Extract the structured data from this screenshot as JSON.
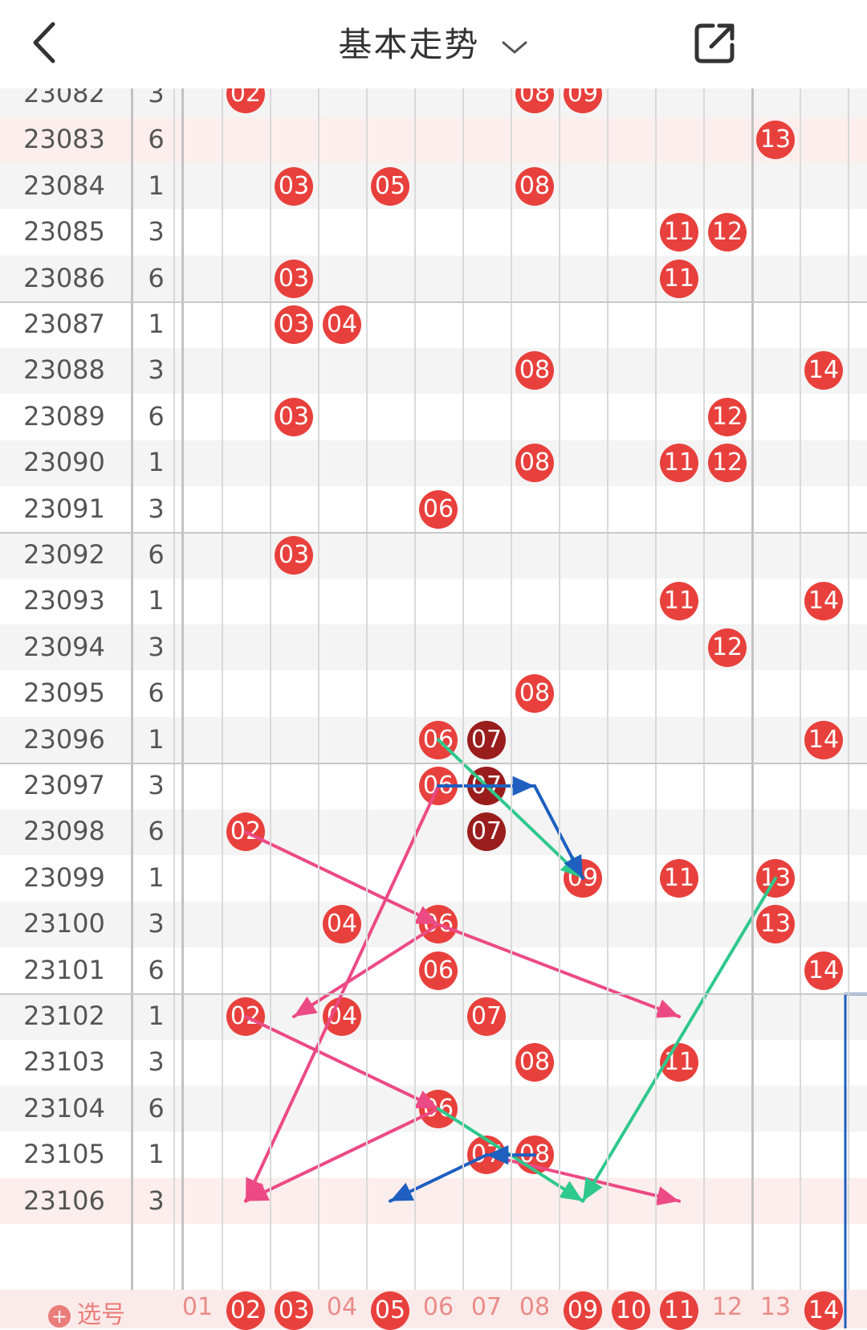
{
  "header": {
    "title": "基本走势",
    "back_icon": "chevron-left-icon",
    "dropdown_icon": "chevron-down-icon",
    "share_icon": "share-external-icon"
  },
  "colors": {
    "ball": "#e8403c",
    "ball_dark": "#9a1d1d",
    "arrow_pink": "#ec4a84",
    "arrow_green": "#2fc88c",
    "arrow_blue": "#1e5fc0",
    "frame_blue": "#1e5fc0"
  },
  "rows": [
    {
      "period": "23082",
      "sum": "3",
      "balls": [
        "02",
        "08",
        "09"
      ]
    },
    {
      "period": "23083",
      "sum": "6",
      "balls": [
        "13"
      ],
      "highlight": true
    },
    {
      "period": "23084",
      "sum": "1",
      "balls": [
        "03",
        "05",
        "08"
      ]
    },
    {
      "period": "23085",
      "sum": "3",
      "balls": [
        "11",
        "12"
      ]
    },
    {
      "period": "23086",
      "sum": "6",
      "balls": [
        "03",
        "11"
      ]
    },
    {
      "period": "23087",
      "sum": "1",
      "balls": [
        "03",
        "04"
      ]
    },
    {
      "period": "23088",
      "sum": "3",
      "balls": [
        "08",
        "14"
      ]
    },
    {
      "period": "23089",
      "sum": "6",
      "balls": [
        "03",
        "12"
      ]
    },
    {
      "period": "23090",
      "sum": "1",
      "balls": [
        "08",
        "11",
        "12"
      ]
    },
    {
      "period": "23091",
      "sum": "3",
      "balls": [
        "06"
      ]
    },
    {
      "period": "23092",
      "sum": "6",
      "balls": [
        "03"
      ]
    },
    {
      "period": "23093",
      "sum": "1",
      "balls": [
        "11",
        "14"
      ]
    },
    {
      "period": "23094",
      "sum": "3",
      "balls": [
        "12"
      ]
    },
    {
      "period": "23095",
      "sum": "6",
      "balls": [
        "08"
      ]
    },
    {
      "period": "23096",
      "sum": "1",
      "balls": [
        "06",
        "07",
        "14"
      ],
      "dark": [
        "07"
      ]
    },
    {
      "period": "23097",
      "sum": "3",
      "balls": [
        "06",
        "07"
      ],
      "dark": [
        "07"
      ]
    },
    {
      "period": "23098",
      "sum": "6",
      "balls": [
        "02",
        "07"
      ],
      "dark": [
        "07"
      ]
    },
    {
      "period": "23099",
      "sum": "1",
      "balls": [
        "09",
        "11",
        "13"
      ]
    },
    {
      "period": "23100",
      "sum": "3",
      "balls": [
        "04",
        "06",
        "13"
      ]
    },
    {
      "period": "23101",
      "sum": "6",
      "balls": [
        "06",
        "14"
      ]
    },
    {
      "period": "23102",
      "sum": "1",
      "balls": [
        "02",
        "04",
        "07"
      ]
    },
    {
      "period": "23103",
      "sum": "3",
      "balls": [
        "08",
        "11"
      ]
    },
    {
      "period": "23104",
      "sum": "6",
      "balls": [
        "06"
      ]
    },
    {
      "period": "23105",
      "sum": "1",
      "balls": [
        "07",
        "08"
      ]
    },
    {
      "period": "23106",
      "sum": "3",
      "balls": [],
      "highlight": true
    }
  ],
  "footer": {
    "pick_label": "选号",
    "pick_icon": "plus-circle-icon",
    "numbers": [
      "01",
      "02",
      "03",
      "04",
      "05",
      "06",
      "07",
      "08",
      "09",
      "10",
      "11",
      "12",
      "13",
      "14"
    ],
    "selected": [
      "02",
      "03",
      "05",
      "09",
      "10",
      "11",
      "14"
    ]
  },
  "arrows": [
    {
      "color": "pink",
      "from": "23098:02",
      "to": "23100:06"
    },
    {
      "color": "pink",
      "from": "23100:06",
      "to": "23102:11"
    },
    {
      "color": "pink",
      "from": "23100:06",
      "to": "23102:03"
    },
    {
      "color": "pink",
      "from": "23097:06",
      "to": "23106:02"
    },
    {
      "color": "pink",
      "from": "23102:02",
      "to": "23104:06"
    },
    {
      "color": "pink",
      "from": "23104:06",
      "to": "23106:02"
    },
    {
      "color": "pink",
      "from": "23105:07",
      "to": "23106:11"
    },
    {
      "color": "green",
      "from": "23096:06",
      "to": "23099:09"
    },
    {
      "color": "green",
      "from": "23099:13",
      "to": "23106:09"
    },
    {
      "color": "green",
      "from": "23104:06",
      "to": "23106:09"
    },
    {
      "color": "blue",
      "from": "23097:06",
      "to": "23097:08"
    },
    {
      "color": "blue",
      "from": "23097:08",
      "to": "23099:09"
    },
    {
      "color": "blue",
      "from": "23105:08",
      "to": "23105:07"
    },
    {
      "color": "blue",
      "from": "23105:07",
      "to": "23106:05"
    }
  ]
}
